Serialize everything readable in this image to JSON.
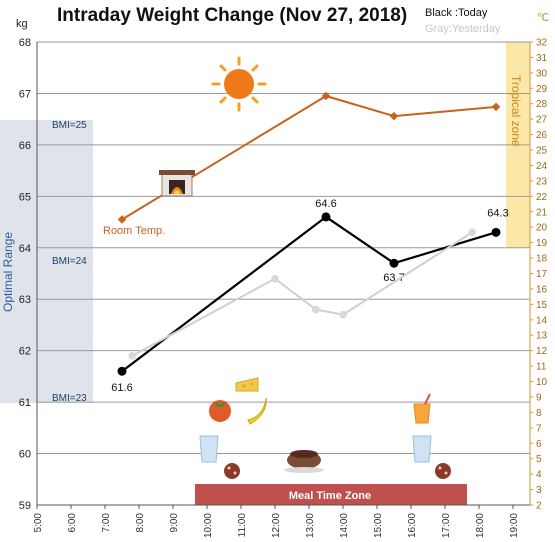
{
  "chart_data": {
    "type": "line",
    "title": "Intraday Weight Change (Nov 27, 2018)",
    "legend": {
      "today": "Black :Today",
      "yesterday": "Gray:Yesterday"
    },
    "y_unit": "kg",
    "y2_unit": "℃",
    "ylim": [
      59,
      68
    ],
    "y_ticks": [
      "59",
      "60",
      "61",
      "62",
      "63",
      "64",
      "65",
      "66",
      "67",
      "68"
    ],
    "y2lim": [
      2,
      32
    ],
    "y2_ticks": [
      "2",
      "3",
      "4",
      "5",
      "6",
      "7",
      "8",
      "9",
      "10",
      "11",
      "12",
      "13",
      "14",
      "15",
      "16",
      "17",
      "18",
      "19",
      "20",
      "21",
      "22",
      "23",
      "24",
      "25",
      "26",
      "27",
      "28",
      "29",
      "30",
      "31",
      "32"
    ],
    "x_ticks": [
      "5:00",
      "6:00",
      "7:00",
      "8:00",
      "9:00",
      "10:00",
      "11:00",
      "12:00",
      "13:00",
      "14:00",
      "15:00",
      "16:00",
      "17:00",
      "18:00",
      "19:00"
    ],
    "xlim": [
      5,
      19.5
    ],
    "grid": true,
    "series": [
      {
        "name": "Today",
        "color": "#000000",
        "axis": "y",
        "x": [
          7.5,
          13.5,
          15.5,
          18.5
        ],
        "y": [
          61.6,
          64.6,
          63.7,
          64.3
        ],
        "labels": [
          "61.6",
          "64.6",
          "63.7",
          "64.3"
        ]
      },
      {
        "name": "Yesterday",
        "color": "#d0d0d0",
        "axis": "y",
        "x": [
          7.8,
          12.0,
          13.2,
          14.0,
          17.8
        ],
        "y": [
          61.9,
          63.4,
          62.8,
          62.7,
          64.3
        ]
      },
      {
        "name": "Temperature",
        "color": "#c8621c",
        "axis": "y2",
        "x": [
          7.5,
          13.5,
          15.5,
          18.5
        ],
        "y": [
          20.5,
          28.5,
          27.2,
          27.8
        ]
      }
    ],
    "bands": [
      {
        "label": "Optimal Range",
        "color": "#dfe4eb"
      },
      {
        "label": "Tropical zone",
        "color": "#fde7a8"
      },
      {
        "label": "Meal Time Zone",
        "color": "#c0504d"
      }
    ],
    "bmi_labels": [
      "BMI=25",
      "BMI=24",
      "BMI=23"
    ],
    "annotations": [
      "Room Temp."
    ]
  }
}
